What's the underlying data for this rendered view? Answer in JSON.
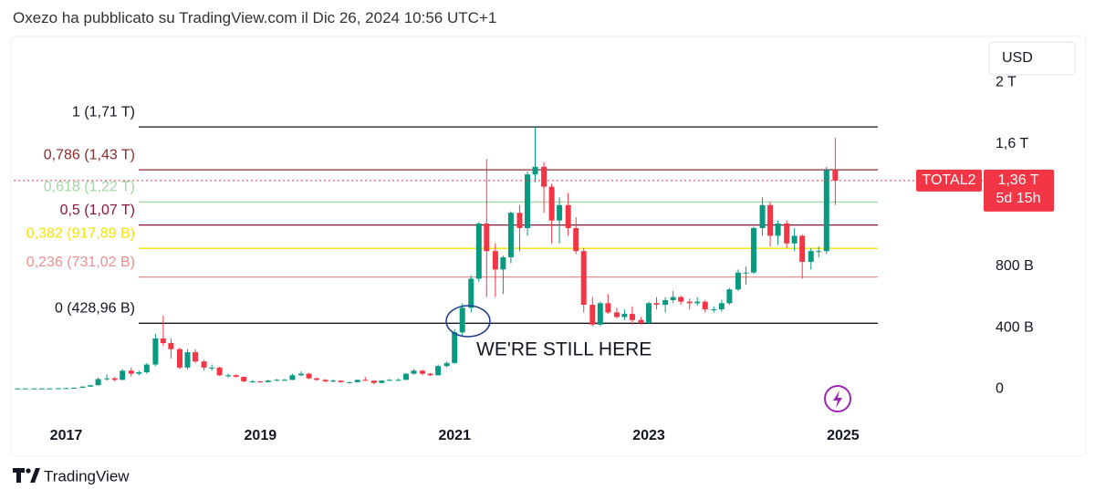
{
  "header": "Oxezo ha pubblicato su TradingView.com il Dic 26, 2024 10:56 UTC+1",
  "footer": "TradingView",
  "chart_data": {
    "type": "candlestick",
    "currency_button": "USD",
    "annotation": "WE'RE STILL HERE",
    "xlim": [
      2016.46,
      2026.42
    ],
    "xticks": [
      2017,
      2019,
      2021,
      2023,
      2025
    ],
    "ylim": [
      -200,
      2300
    ],
    "yticks": [
      0,
      {
        "value": 400,
        "label": "400 B"
      },
      {
        "value": 800,
        "label": "800 B"
      },
      {
        "value": 1600,
        "label": "1,6 T"
      },
      {
        "value": 2000,
        "label": "2 T"
      }
    ],
    "grid": false,
    "up_color": "#089981",
    "down_color": "#f23645",
    "last_price": {
      "symbol": "TOTAL2",
      "value": 1360,
      "label": "1,36 T",
      "countdown": "5d 15h",
      "color": "#f23645"
    },
    "fib_levels": [
      {
        "label": "1 (1,71 T)",
        "value": 1710,
        "color": "#131722"
      },
      {
        "label": "0,786 (1,43 T)",
        "value": 1430,
        "color": "#8b2c2c"
      },
      {
        "label": "0,618 (1,22 T)",
        "value": 1220,
        "color": "#a5d6a7"
      },
      {
        "label": "0,5 (1,07 T)",
        "value": 1070,
        "color": "#8b1538"
      },
      {
        "label": "0,382 (917,89 B)",
        "value": 917.89,
        "color": "#f5e400"
      },
      {
        "label": "0,236 (731,02 B)",
        "value": 731.02,
        "color": "#ef8f8f"
      },
      {
        "label": "0 (428,96 B)",
        "value": 428.96,
        "color": "#131722"
      }
    ],
    "x": [
      2016.5,
      2016.58,
      2016.67,
      2016.75,
      2016.83,
      2016.92,
      2017.0,
      2017.08,
      2017.17,
      2017.25,
      2017.33,
      2017.42,
      2017.5,
      2017.58,
      2017.67,
      2017.75,
      2017.83,
      2017.92,
      2018.0,
      2018.08,
      2018.17,
      2018.25,
      2018.33,
      2018.42,
      2018.5,
      2018.58,
      2018.67,
      2018.75,
      2018.83,
      2018.92,
      2019.0,
      2019.08,
      2019.17,
      2019.25,
      2019.33,
      2019.42,
      2019.5,
      2019.58,
      2019.67,
      2019.75,
      2019.83,
      2019.92,
      2020.0,
      2020.08,
      2020.17,
      2020.25,
      2020.33,
      2020.42,
      2020.5,
      2020.58,
      2020.67,
      2020.75,
      2020.83,
      2020.92,
      2021.0,
      2021.08,
      2021.17,
      2021.25,
      2021.33,
      2021.42,
      2021.5,
      2021.58,
      2021.67,
      2021.75,
      2021.83,
      2021.92,
      2022.0,
      2022.08,
      2022.17,
      2022.25,
      2022.33,
      2022.42,
      2022.5,
      2022.58,
      2022.67,
      2022.75,
      2022.83,
      2022.92,
      2023.0,
      2023.08,
      2023.17,
      2023.25,
      2023.33,
      2023.42,
      2023.5,
      2023.58,
      2023.67,
      2023.75,
      2023.83,
      2023.92,
      2024.0,
      2024.08,
      2024.17,
      2024.25,
      2024.33,
      2024.42,
      2024.5,
      2024.58,
      2024.67,
      2024.75,
      2024.83,
      2024.92
    ],
    "open": [
      3,
      4,
      4,
      4,
      4,
      4,
      5,
      6,
      8,
      16,
      25,
      65,
      70,
      60,
      120,
      100,
      110,
      160,
      330,
      300,
      260,
      140,
      240,
      180,
      140,
      140,
      90,
      90,
      80,
      50,
      50,
      45,
      55,
      60,
      60,
      90,
      100,
      70,
      60,
      50,
      55,
      45,
      45,
      60,
      55,
      40,
      55,
      60,
      60,
      100,
      120,
      100,
      90,
      150,
      170,
      370,
      530,
      720,
      1080,
      900,
      780,
      860,
      1150,
      1050,
      1400,
      1450,
      1320,
      1100,
      1200,
      1050,
      900,
      550,
      420,
      560,
      500,
      470,
      490,
      450,
      430,
      560,
      550,
      580,
      600,
      570,
      560,
      570,
      520,
      520,
      560,
      650,
      760,
      760,
      1050,
      1200,
      1000,
      1080,
      950,
      1000,
      830,
      900,
      900,
      1430
    ],
    "high": [
      4,
      4,
      4,
      5,
      5,
      6,
      7,
      9,
      18,
      27,
      75,
      95,
      80,
      130,
      140,
      120,
      170,
      360,
      480,
      330,
      270,
      260,
      260,
      190,
      160,
      145,
      100,
      95,
      82,
      60,
      52,
      60,
      65,
      68,
      100,
      115,
      105,
      75,
      65,
      62,
      56,
      48,
      62,
      80,
      57,
      58,
      65,
      68,
      105,
      130,
      125,
      105,
      160,
      180,
      390,
      560,
      740,
      1090,
      1500,
      950,
      870,
      1160,
      1200,
      1420,
      1710,
      1480,
      1340,
      1250,
      1280,
      1120,
      920,
      600,
      570,
      620,
      530,
      520,
      540,
      470,
      570,
      600,
      600,
      640,
      610,
      590,
      600,
      580,
      540,
      580,
      660,
      780,
      800,
      1060,
      1250,
      1220,
      1100,
      1100,
      1050,
      1010,
      920,
      930,
      1450,
      1640
    ],
    "low": [
      3,
      3,
      3,
      4,
      4,
      4,
      5,
      6,
      8,
      15,
      24,
      55,
      50,
      58,
      80,
      90,
      100,
      150,
      280,
      200,
      130,
      130,
      170,
      120,
      120,
      85,
      75,
      75,
      45,
      40,
      40,
      43,
      52,
      55,
      58,
      85,
      65,
      55,
      45,
      45,
      42,
      38,
      44,
      55,
      30,
      38,
      52,
      55,
      58,
      95,
      90,
      85,
      88,
      140,
      165,
      350,
      500,
      700,
      600,
      600,
      620,
      820,
      900,
      1000,
      1350,
      1150,
      950,
      950,
      1000,
      880,
      500,
      410,
      410,
      490,
      460,
      450,
      420,
      420,
      425,
      520,
      500,
      560,
      550,
      520,
      545,
      500,
      500,
      505,
      550,
      640,
      680,
      750,
      1000,
      930,
      940,
      920,
      900,
      720,
      780,
      860,
      880,
      1200
    ],
    "close": [
      4,
      4,
      4,
      4,
      4,
      5,
      6,
      8,
      16,
      25,
      65,
      70,
      60,
      120,
      100,
      110,
      160,
      330,
      300,
      260,
      140,
      240,
      180,
      140,
      140,
      90,
      90,
      80,
      50,
      50,
      45,
      55,
      60,
      60,
      90,
      100,
      70,
      60,
      50,
      55,
      45,
      45,
      60,
      55,
      40,
      55,
      60,
      60,
      100,
      120,
      100,
      90,
      150,
      170,
      370,
      530,
      720,
      1080,
      900,
      780,
      860,
      1150,
      1050,
      1400,
      1450,
      1320,
      1100,
      1200,
      1050,
      900,
      550,
      420,
      560,
      500,
      470,
      490,
      450,
      430,
      560,
      550,
      580,
      600,
      570,
      560,
      570,
      520,
      520,
      560,
      650,
      760,
      760,
      1050,
      1200,
      1000,
      1080,
      950,
      1000,
      830,
      900,
      900,
      1430,
      1360
    ]
  }
}
